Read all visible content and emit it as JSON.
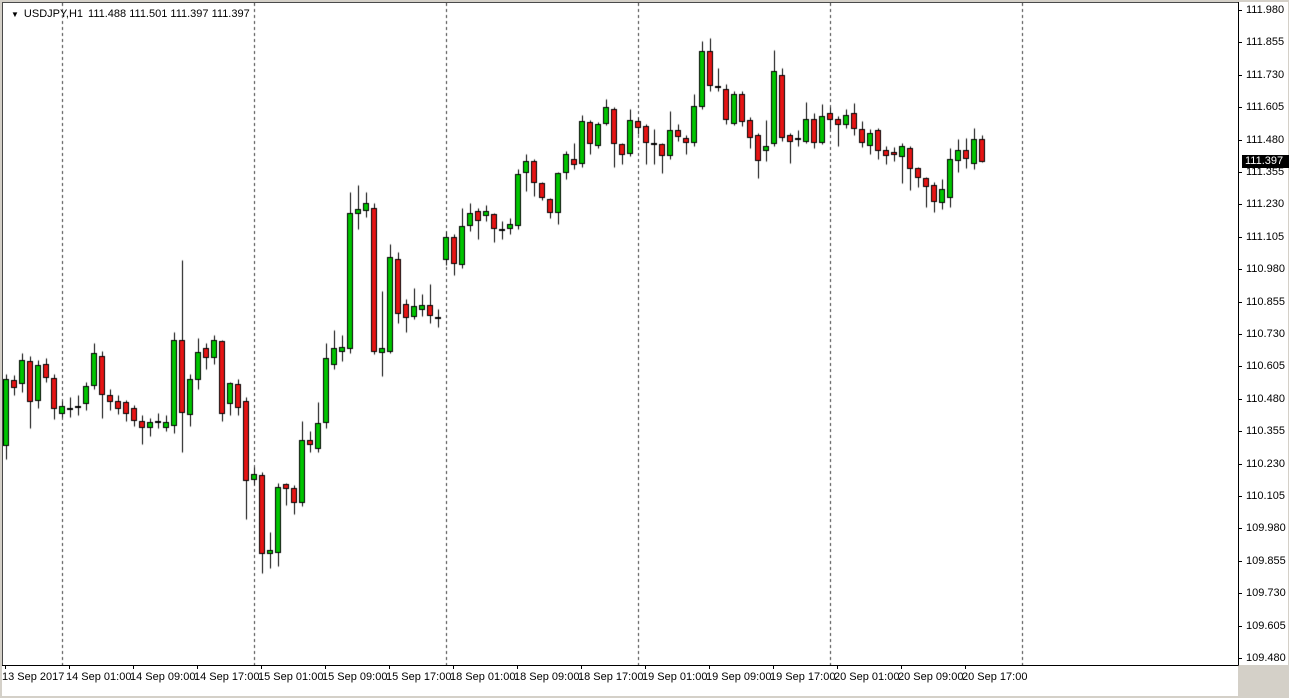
{
  "window": {
    "title": {
      "collapse_icon": "▼",
      "symbol_period": "USDJPY,H1",
      "ohlc_text": "111.488 111.501 111.397 111.397"
    }
  },
  "colors": {
    "background": "#FFFFFF",
    "frame": "#D4D0C8",
    "bull": "#00C400",
    "bear": "#E61414",
    "wick": "#000000",
    "separator": "#3A3A3A",
    "axis_text": "#000000",
    "price_marker_bg": "#000000",
    "price_marker_text": "#FFFFFF"
  },
  "chart_data": {
    "type": "candlestick",
    "symbol": "USDJPY",
    "timeframe": "H1",
    "title": "USDJPY,H1",
    "current_bar": {
      "open": 111.488,
      "high": 111.501,
      "low": 111.397,
      "close": 111.397
    },
    "current_price_label": "111.397",
    "price_axis": {
      "max": 111.98,
      "min": 109.48,
      "step": 0.125,
      "labels": [
        "111.980",
        "111.855",
        "111.730",
        "111.605",
        "111.480",
        "111.355",
        "111.230",
        "111.105",
        "110.980",
        "110.855",
        "110.730",
        "110.605",
        "110.480",
        "110.355",
        "110.230",
        "110.105",
        "109.980",
        "109.855",
        "109.730",
        "109.605",
        "109.480"
      ]
    },
    "time_axis": {
      "labels": [
        "13 Sep 2017",
        "14 Sep 01:00",
        "14 Sep 09:00",
        "14 Sep 17:00",
        "15 Sep 01:00",
        "15 Sep 09:00",
        "15 Sep 17:00",
        "18 Sep 01:00",
        "18 Sep 09:00",
        "18 Sep 17:00",
        "19 Sep 01:00",
        "19 Sep 09:00",
        "19 Sep 17:00",
        "20 Sep 01:00",
        "20 Sep 09:00",
        "20 Sep 17:00"
      ],
      "bars_per_label": 8,
      "day_separator_first_index": 7,
      "day_separator_interval": 24
    },
    "grid": "vertical-day-separators-only",
    "legend": "none",
    "candles": [
      {
        "t": "13 Sep 17:00",
        "o": 110.3,
        "h": 110.58,
        "l": 110.25,
        "c": 110.56
      },
      {
        "t": "13 Sep 18:00",
        "o": 110.555,
        "h": 110.575,
        "l": 110.5,
        "c": 110.525
      },
      {
        "t": "13 Sep 19:00",
        "o": 110.54,
        "h": 110.66,
        "l": 110.51,
        "c": 110.635
      },
      {
        "t": "13 Sep 20:00",
        "o": 110.63,
        "h": 110.65,
        "l": 110.37,
        "c": 110.47
      },
      {
        "t": "13 Sep 21:00",
        "o": 110.475,
        "h": 110.635,
        "l": 110.45,
        "c": 110.615
      },
      {
        "t": "13 Sep 22:00",
        "o": 110.62,
        "h": 110.64,
        "l": 110.55,
        "c": 110.565
      },
      {
        "t": "13 Sep 23:00",
        "o": 110.565,
        "h": 110.58,
        "l": 110.405,
        "c": 110.445
      },
      {
        "t": "14 Sep 00:00",
        "o": 110.425,
        "h": 110.475,
        "l": 110.415,
        "c": 110.455
      },
      {
        "t": "14 Sep 01:00",
        "o": 110.45,
        "h": 110.49,
        "l": 110.415,
        "c": 110.448
      },
      {
        "t": "14 Sep 02:00",
        "o": 110.455,
        "h": 110.5,
        "l": 110.42,
        "c": 110.452
      },
      {
        "t": "14 Sep 03:00",
        "o": 110.465,
        "h": 110.55,
        "l": 110.44,
        "c": 110.535
      },
      {
        "t": "14 Sep 04:00",
        "o": 110.535,
        "h": 110.7,
        "l": 110.52,
        "c": 110.66
      },
      {
        "t": "14 Sep 05:00",
        "o": 110.65,
        "h": 110.67,
        "l": 110.41,
        "c": 110.5
      },
      {
        "t": "14 Sep 06:00",
        "o": 110.5,
        "h": 110.52,
        "l": 110.44,
        "c": 110.47
      },
      {
        "t": "14 Sep 07:00",
        "o": 110.475,
        "h": 110.5,
        "l": 110.425,
        "c": 110.445
      },
      {
        "t": "14 Sep 08:00",
        "o": 110.47,
        "h": 110.48,
        "l": 110.4,
        "c": 110.425
      },
      {
        "t": "14 Sep 09:00",
        "o": 110.45,
        "h": 110.46,
        "l": 110.38,
        "c": 110.4
      },
      {
        "t": "14 Sep 10:00",
        "o": 110.4,
        "h": 110.42,
        "l": 110.31,
        "c": 110.37
      },
      {
        "t": "14 Sep 11:00",
        "o": 110.37,
        "h": 110.41,
        "l": 110.34,
        "c": 110.395
      },
      {
        "t": "14 Sep 12:00",
        "o": 110.4,
        "h": 110.43,
        "l": 110.37,
        "c": 110.4
      },
      {
        "t": "14 Sep 13:00",
        "o": 110.37,
        "h": 110.42,
        "l": 110.36,
        "c": 110.395
      },
      {
        "t": "14 Sep 14:00",
        "o": 110.38,
        "h": 110.74,
        "l": 110.35,
        "c": 110.71
      },
      {
        "t": "14 Sep 15:00",
        "o": 110.71,
        "h": 111.02,
        "l": 110.28,
        "c": 110.43
      },
      {
        "t": "14 Sep 16:00",
        "o": 110.42,
        "h": 110.58,
        "l": 110.38,
        "c": 110.56
      },
      {
        "t": "14 Sep 17:00",
        "o": 110.555,
        "h": 110.72,
        "l": 110.52,
        "c": 110.665
      },
      {
        "t": "14 Sep 18:00",
        "o": 110.68,
        "h": 110.7,
        "l": 110.6,
        "c": 110.64
      },
      {
        "t": "14 Sep 19:00",
        "o": 110.64,
        "h": 110.73,
        "l": 110.62,
        "c": 110.71
      },
      {
        "t": "14 Sep 20:00",
        "o": 110.705,
        "h": 110.71,
        "l": 110.4,
        "c": 110.425
      },
      {
        "t": "14 Sep 21:00",
        "o": 110.465,
        "h": 110.55,
        "l": 110.42,
        "c": 110.545
      },
      {
        "t": "14 Sep 22:00",
        "o": 110.54,
        "h": 110.56,
        "l": 110.42,
        "c": 110.45
      },
      {
        "t": "14 Sep 23:00",
        "o": 110.475,
        "h": 110.49,
        "l": 110.02,
        "c": 110.165
      },
      {
        "t": "15 Sep 00:00",
        "o": 110.17,
        "h": 110.22,
        "l": 110.15,
        "c": 110.195
      },
      {
        "t": "15 Sep 01:00",
        "o": 110.19,
        "h": 110.2,
        "l": 109.81,
        "c": 109.885
      },
      {
        "t": "15 Sep 02:00",
        "o": 109.885,
        "h": 109.97,
        "l": 109.83,
        "c": 109.9
      },
      {
        "t": "15 Sep 03:00",
        "o": 109.89,
        "h": 110.16,
        "l": 109.84,
        "c": 110.145
      },
      {
        "t": "15 Sep 04:00",
        "o": 110.155,
        "h": 110.16,
        "l": 110.075,
        "c": 110.135
      },
      {
        "t": "15 Sep 05:00",
        "o": 110.14,
        "h": 110.15,
        "l": 110.04,
        "c": 110.08
      },
      {
        "t": "15 Sep 06:00",
        "o": 110.08,
        "h": 110.4,
        "l": 110.07,
        "c": 110.325
      },
      {
        "t": "15 Sep 07:00",
        "o": 110.325,
        "h": 110.36,
        "l": 110.28,
        "c": 110.305
      },
      {
        "t": "15 Sep 08:00",
        "o": 110.29,
        "h": 110.47,
        "l": 110.28,
        "c": 110.39
      },
      {
        "t": "15 Sep 09:00",
        "o": 110.39,
        "h": 110.7,
        "l": 110.37,
        "c": 110.64
      },
      {
        "t": "15 Sep 10:00",
        "o": 110.615,
        "h": 110.75,
        "l": 110.6,
        "c": 110.68
      },
      {
        "t": "15 Sep 11:00",
        "o": 110.665,
        "h": 110.73,
        "l": 110.63,
        "c": 110.685
      },
      {
        "t": "15 Sep 12:00",
        "o": 110.675,
        "h": 111.28,
        "l": 110.66,
        "c": 111.2
      },
      {
        "t": "15 Sep 13:00",
        "o": 111.195,
        "h": 111.31,
        "l": 111.14,
        "c": 111.215
      },
      {
        "t": "15 Sep 14:00",
        "o": 111.21,
        "h": 111.28,
        "l": 111.185,
        "c": 111.24
      },
      {
        "t": "15 Sep 15:00",
        "o": 111.22,
        "h": 111.24,
        "l": 110.655,
        "c": 110.665
      },
      {
        "t": "15 Sep 16:00",
        "o": 110.66,
        "h": 110.9,
        "l": 110.57,
        "c": 110.68
      },
      {
        "t": "15 Sep 17:00",
        "o": 110.665,
        "h": 111.08,
        "l": 110.66,
        "c": 111.03
      },
      {
        "t": "15 Sep 18:00",
        "o": 111.025,
        "h": 111.05,
        "l": 110.775,
        "c": 110.81
      },
      {
        "t": "15 Sep 19:00",
        "o": 110.85,
        "h": 110.87,
        "l": 110.74,
        "c": 110.795
      },
      {
        "t": "15 Sep 20:00",
        "o": 110.8,
        "h": 110.91,
        "l": 110.79,
        "c": 110.84
      },
      {
        "t": "15 Sep 21:00",
        "o": 110.825,
        "h": 110.89,
        "l": 110.805,
        "c": 110.845
      },
      {
        "t": "15 Sep 22:00",
        "o": 110.845,
        "h": 110.925,
        "l": 110.775,
        "c": 110.805
      },
      {
        "t": "15 Sep 23:00",
        "o": 110.79,
        "h": 110.83,
        "l": 110.76,
        "c": 110.8
      },
      {
        "t": "18 Sep 00:00",
        "o": 111.02,
        "h": 111.13,
        "l": 111.0,
        "c": 111.11
      },
      {
        "t": "18 Sep 01:00",
        "o": 111.11,
        "h": 111.12,
        "l": 110.96,
        "c": 111.005
      },
      {
        "t": "18 Sep 02:00",
        "o": 111.0,
        "h": 111.22,
        "l": 110.99,
        "c": 111.15
      },
      {
        "t": "18 Sep 03:00",
        "o": 111.15,
        "h": 111.24,
        "l": 111.13,
        "c": 111.2
      },
      {
        "t": "18 Sep 04:00",
        "o": 111.21,
        "h": 111.22,
        "l": 111.1,
        "c": 111.17
      },
      {
        "t": "18 Sep 05:00",
        "o": 111.19,
        "h": 111.23,
        "l": 111.17,
        "c": 111.21
      },
      {
        "t": "18 Sep 06:00",
        "o": 111.195,
        "h": 111.2,
        "l": 111.09,
        "c": 111.14
      },
      {
        "t": "18 Sep 07:00",
        "o": 111.14,
        "h": 111.17,
        "l": 111.1,
        "c": 111.14
      },
      {
        "t": "18 Sep 08:00",
        "o": 111.14,
        "h": 111.18,
        "l": 111.12,
        "c": 111.16
      },
      {
        "t": "18 Sep 09:00",
        "o": 111.15,
        "h": 111.37,
        "l": 111.14,
        "c": 111.35
      },
      {
        "t": "18 Sep 10:00",
        "o": 111.355,
        "h": 111.43,
        "l": 111.285,
        "c": 111.4
      },
      {
        "t": "18 Sep 11:00",
        "o": 111.4,
        "h": 111.41,
        "l": 111.265,
        "c": 111.315
      },
      {
        "t": "18 Sep 12:00",
        "o": 111.315,
        "h": 111.32,
        "l": 111.25,
        "c": 111.26
      },
      {
        "t": "18 Sep 13:00",
        "o": 111.255,
        "h": 111.26,
        "l": 111.18,
        "c": 111.2
      },
      {
        "t": "18 Sep 14:00",
        "o": 111.2,
        "h": 111.36,
        "l": 111.16,
        "c": 111.355
      },
      {
        "t": "18 Sep 15:00",
        "o": 111.355,
        "h": 111.44,
        "l": 111.33,
        "c": 111.43
      },
      {
        "t": "18 Sep 16:00",
        "o": 111.41,
        "h": 111.47,
        "l": 111.37,
        "c": 111.385
      },
      {
        "t": "18 Sep 17:00",
        "o": 111.39,
        "h": 111.58,
        "l": 111.38,
        "c": 111.555
      },
      {
        "t": "18 Sep 18:00",
        "o": 111.55,
        "h": 111.56,
        "l": 111.43,
        "c": 111.465
      },
      {
        "t": "18 Sep 19:00",
        "o": 111.46,
        "h": 111.55,
        "l": 111.45,
        "c": 111.545
      },
      {
        "t": "18 Sep 20:00",
        "o": 111.545,
        "h": 111.64,
        "l": 111.54,
        "c": 111.61
      },
      {
        "t": "18 Sep 21:00",
        "o": 111.6,
        "h": 111.61,
        "l": 111.38,
        "c": 111.465
      },
      {
        "t": "18 Sep 22:00",
        "o": 111.465,
        "h": 111.47,
        "l": 111.39,
        "c": 111.425
      },
      {
        "t": "18 Sep 23:00",
        "o": 111.43,
        "h": 111.6,
        "l": 111.42,
        "c": 111.56
      },
      {
        "t": "19 Sep 00:00",
        "o": 111.555,
        "h": 111.57,
        "l": 111.505,
        "c": 111.53
      },
      {
        "t": "19 Sep 01:00",
        "o": 111.535,
        "h": 111.545,
        "l": 111.39,
        "c": 111.47
      },
      {
        "t": "19 Sep 02:00",
        "o": 111.47,
        "h": 111.525,
        "l": 111.39,
        "c": 111.47
      },
      {
        "t": "19 Sep 03:00",
        "o": 111.465,
        "h": 111.47,
        "l": 111.355,
        "c": 111.42
      },
      {
        "t": "19 Sep 04:00",
        "o": 111.42,
        "h": 111.595,
        "l": 111.41,
        "c": 111.52
      },
      {
        "t": "19 Sep 05:00",
        "o": 111.52,
        "h": 111.545,
        "l": 111.48,
        "c": 111.495
      },
      {
        "t": "19 Sep 06:00",
        "o": 111.49,
        "h": 111.5,
        "l": 111.43,
        "c": 111.47
      },
      {
        "t": "19 Sep 07:00",
        "o": 111.47,
        "h": 111.66,
        "l": 111.46,
        "c": 111.615
      },
      {
        "t": "19 Sep 08:00",
        "o": 111.61,
        "h": 111.865,
        "l": 111.6,
        "c": 111.825
      },
      {
        "t": "19 Sep 09:00",
        "o": 111.825,
        "h": 111.875,
        "l": 111.67,
        "c": 111.69
      },
      {
        "t": "19 Sep 10:00",
        "o": 111.69,
        "h": 111.76,
        "l": 111.67,
        "c": 111.685
      },
      {
        "t": "19 Sep 11:00",
        "o": 111.68,
        "h": 111.7,
        "l": 111.545,
        "c": 111.56
      },
      {
        "t": "19 Sep 12:00",
        "o": 111.545,
        "h": 111.67,
        "l": 111.54,
        "c": 111.66
      },
      {
        "t": "19 Sep 13:00",
        "o": 111.66,
        "h": 111.67,
        "l": 111.535,
        "c": 111.55
      },
      {
        "t": "19 Sep 14:00",
        "o": 111.56,
        "h": 111.57,
        "l": 111.45,
        "c": 111.49
      },
      {
        "t": "19 Sep 15:00",
        "o": 111.5,
        "h": 111.51,
        "l": 111.335,
        "c": 111.4
      },
      {
        "t": "19 Sep 16:00",
        "o": 111.44,
        "h": 111.56,
        "l": 111.4,
        "c": 111.46
      },
      {
        "t": "19 Sep 17:00",
        "o": 111.465,
        "h": 111.83,
        "l": 111.46,
        "c": 111.75
      },
      {
        "t": "19 Sep 18:00",
        "o": 111.735,
        "h": 111.76,
        "l": 111.48,
        "c": 111.49
      },
      {
        "t": "19 Sep 19:00",
        "o": 111.5,
        "h": 111.51,
        "l": 111.395,
        "c": 111.475
      },
      {
        "t": "19 Sep 20:00",
        "o": 111.485,
        "h": 111.52,
        "l": 111.46,
        "c": 111.49
      },
      {
        "t": "19 Sep 21:00",
        "o": 111.475,
        "h": 111.63,
        "l": 111.47,
        "c": 111.565
      },
      {
        "t": "19 Sep 22:00",
        "o": 111.565,
        "h": 111.585,
        "l": 111.45,
        "c": 111.47
      },
      {
        "t": "19 Sep 23:00",
        "o": 111.47,
        "h": 111.62,
        "l": 111.465,
        "c": 111.575
      },
      {
        "t": "20 Sep 00:00",
        "o": 111.585,
        "h": 111.61,
        "l": 111.525,
        "c": 111.56
      },
      {
        "t": "20 Sep 01:00",
        "o": 111.565,
        "h": 111.575,
        "l": 111.46,
        "c": 111.54
      },
      {
        "t": "20 Sep 02:00",
        "o": 111.54,
        "h": 111.6,
        "l": 111.53,
        "c": 111.58
      },
      {
        "t": "20 Sep 03:00",
        "o": 111.585,
        "h": 111.625,
        "l": 111.5,
        "c": 111.525
      },
      {
        "t": "20 Sep 04:00",
        "o": 111.525,
        "h": 111.555,
        "l": 111.455,
        "c": 111.47
      },
      {
        "t": "20 Sep 05:00",
        "o": 111.46,
        "h": 111.525,
        "l": 111.43,
        "c": 111.51
      },
      {
        "t": "20 Sep 06:00",
        "o": 111.52,
        "h": 111.53,
        "l": 111.41,
        "c": 111.44
      },
      {
        "t": "20 Sep 07:00",
        "o": 111.445,
        "h": 111.46,
        "l": 111.39,
        "c": 111.42
      },
      {
        "t": "20 Sep 08:00",
        "o": 111.435,
        "h": 111.455,
        "l": 111.4,
        "c": 111.425
      },
      {
        "t": "20 Sep 09:00",
        "o": 111.415,
        "h": 111.47,
        "l": 111.315,
        "c": 111.46
      },
      {
        "t": "20 Sep 10:00",
        "o": 111.45,
        "h": 111.46,
        "l": 111.29,
        "c": 111.37
      },
      {
        "t": "20 Sep 11:00",
        "o": 111.375,
        "h": 111.38,
        "l": 111.3,
        "c": 111.335
      },
      {
        "t": "20 Sep 12:00",
        "o": 111.335,
        "h": 111.34,
        "l": 111.225,
        "c": 111.3
      },
      {
        "t": "20 Sep 13:00",
        "o": 111.31,
        "h": 111.32,
        "l": 111.205,
        "c": 111.245
      },
      {
        "t": "20 Sep 14:00",
        "o": 111.24,
        "h": 111.33,
        "l": 111.215,
        "c": 111.295
      },
      {
        "t": "20 Sep 15:00",
        "o": 111.26,
        "h": 111.45,
        "l": 111.225,
        "c": 111.41
      },
      {
        "t": "20 Sep 16:00",
        "o": 111.4,
        "h": 111.485,
        "l": 111.36,
        "c": 111.445
      },
      {
        "t": "20 Sep 17:00",
        "o": 111.445,
        "h": 111.49,
        "l": 111.375,
        "c": 111.41
      },
      {
        "t": "20 Sep 18:00",
        "o": 111.39,
        "h": 111.53,
        "l": 111.37,
        "c": 111.485
      },
      {
        "t": "20 Sep 19:00",
        "o": 111.488,
        "h": 111.501,
        "l": 111.397,
        "c": 111.397
      }
    ]
  }
}
